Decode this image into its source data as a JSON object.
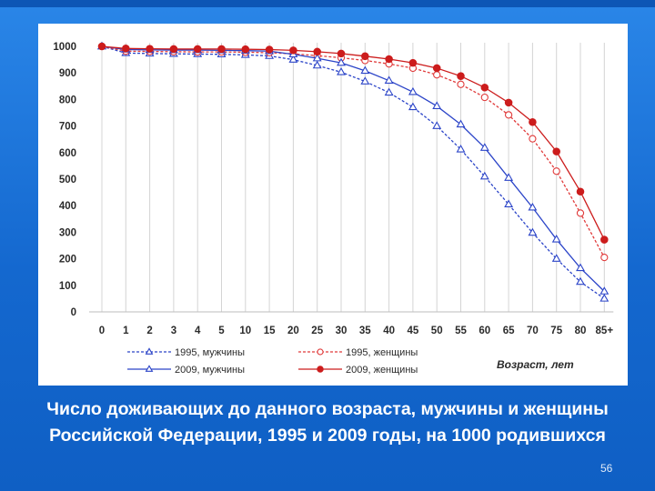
{
  "caption": "Число доживающих до данного возраста, мужчины и женщины Российской Федерации, 1995 и 2009 годы, на 1000 родившихся",
  "slide_number": "56",
  "chart_data": {
    "type": "line",
    "title": "",
    "xlabel": "Возраст, лет",
    "ylabel": "",
    "ylim": [
      0,
      1000
    ],
    "yticks": [
      0,
      100,
      200,
      300,
      400,
      500,
      600,
      700,
      800,
      900,
      1000
    ],
    "categories": [
      "0",
      "1",
      "2",
      "3",
      "4",
      "5",
      "10",
      "15",
      "20",
      "25",
      "30",
      "35",
      "40",
      "45",
      "50",
      "55",
      "60",
      "65",
      "70",
      "75",
      "80",
      "85+"
    ],
    "grid": "vertical",
    "legend_position": "bottom",
    "series": [
      {
        "name": "1995, мужчины",
        "color": "#2b44c8",
        "style": "dashed",
        "marker": "triangle-open",
        "values": [
          1000,
          975,
          973,
          972,
          971,
          970,
          968,
          964,
          950,
          928,
          903,
          868,
          826,
          771,
          700,
          612,
          510,
          405,
          298,
          200,
          113,
          50
        ]
      },
      {
        "name": "1995, женщины",
        "color": "#e03a3a",
        "style": "dashed",
        "marker": "circle-open",
        "values": [
          1000,
          982,
          981,
          980,
          979,
          979,
          978,
          976,
          972,
          965,
          957,
          947,
          934,
          918,
          893,
          857,
          808,
          742,
          652,
          530,
          372,
          205
        ]
      },
      {
        "name": "2009, мужчины",
        "color": "#2b44c8",
        "style": "solid",
        "marker": "triangle-open",
        "values": [
          1000,
          988,
          987,
          986,
          986,
          985,
          984,
          982,
          970,
          955,
          938,
          908,
          871,
          828,
          775,
          706,
          618,
          505,
          393,
          273,
          165,
          77
        ]
      },
      {
        "name": "2009, женщины",
        "color": "#cc1c1c",
        "style": "solid",
        "marker": "circle-filled",
        "values": [
          1000,
          992,
          991,
          990,
          990,
          990,
          989,
          988,
          985,
          980,
          973,
          963,
          952,
          938,
          918,
          888,
          845,
          788,
          715,
          604,
          453,
          272
        ]
      }
    ]
  }
}
